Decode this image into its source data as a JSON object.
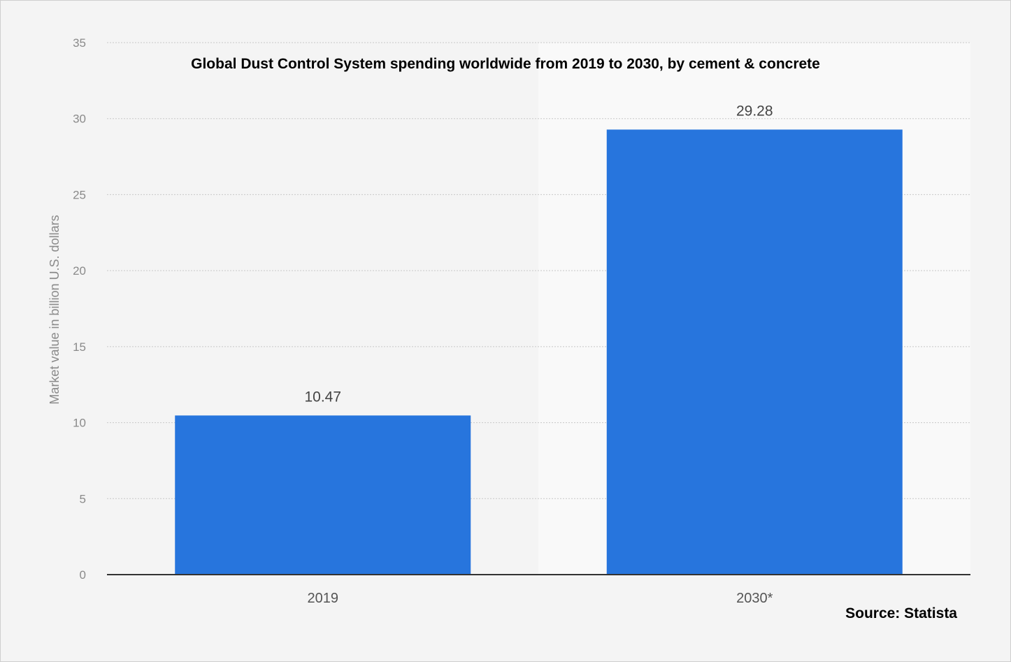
{
  "chart_data": {
    "type": "bar",
    "title": "Global Dust Control System spending worldwide from 2019 to 2030, by cement & concrete",
    "categories": [
      "2019",
      "2030*"
    ],
    "values": [
      10.47,
      29.28
    ],
    "value_labels": [
      "10.47",
      "29.28"
    ],
    "xlabel": "",
    "ylabel": "Market value in billion U.S. dollars",
    "ylim": [
      0,
      35
    ],
    "yticks": [
      0,
      5,
      10,
      15,
      20,
      25,
      30,
      35
    ],
    "grid": true,
    "legend": "none",
    "bar_color": "#2775dd",
    "forecast_shading_color": "#f9f9f9",
    "source": "Source: Statista"
  }
}
